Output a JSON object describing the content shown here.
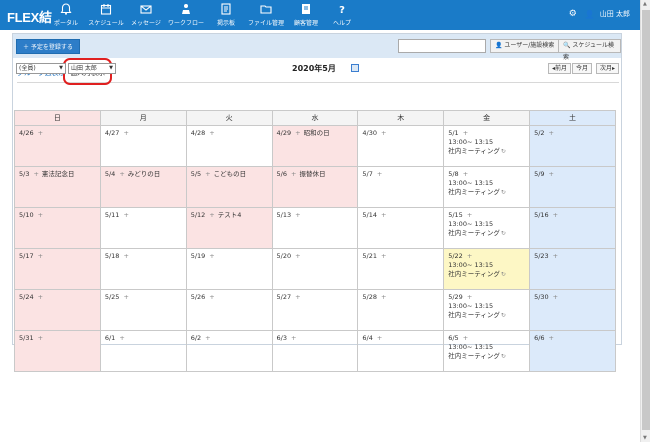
{
  "app": {
    "logo": "FLEX結"
  },
  "nav": [
    {
      "label": "ポータル",
      "icon": "bell-icon"
    },
    {
      "label": "スケジュール",
      "icon": "calendar-icon"
    },
    {
      "label": "メッセージ",
      "icon": "mail-icon"
    },
    {
      "label": "ワークフロー",
      "icon": "workflow-icon"
    },
    {
      "label": "掲示板",
      "icon": "board-icon"
    },
    {
      "label": "ファイル管理",
      "icon": "folder-icon"
    },
    {
      "label": "顧客管理",
      "icon": "customer-icon"
    },
    {
      "label": "ヘルプ",
      "icon": "help-icon"
    }
  ],
  "user": {
    "name": "山田 太郎"
  },
  "toolbar": {
    "add_label": "＋ 予定を登録する",
    "search_placeholder": "",
    "user_search_label": "ユーザー/施設検索",
    "schedule_search_label": "スケジュール検索"
  },
  "tabs": {
    "group": "グループ週表示",
    "personal": "個人月表示"
  },
  "filters": {
    "group_value": "(全員)",
    "user_value": "山田 太郎"
  },
  "calendar": {
    "title": "2020年5月",
    "prev": "前月",
    "today": "今月",
    "next": "次月",
    "weekdays": [
      "日",
      "月",
      "火",
      "水",
      "木",
      "金",
      "土"
    ],
    "weeks": [
      [
        {
          "date": "4/26",
          "type": "sun"
        },
        {
          "date": "4/27",
          "type": ""
        },
        {
          "date": "4/28",
          "type": ""
        },
        {
          "date": "4/29",
          "type": "hol",
          "holiday": "昭和の日"
        },
        {
          "date": "4/30",
          "type": ""
        },
        {
          "date": "5/1",
          "type": "",
          "event": {
            "time": "13:00~ 13:15",
            "title": "社内ミーティング"
          }
        },
        {
          "date": "5/2",
          "type": "sat"
        }
      ],
      [
        {
          "date": "5/3",
          "type": "sun",
          "holiday": "憲法記念日"
        },
        {
          "date": "5/4",
          "type": "hol",
          "holiday": "みどりの日"
        },
        {
          "date": "5/5",
          "type": "hol",
          "holiday": "こどもの日"
        },
        {
          "date": "5/6",
          "type": "hol",
          "holiday": "振替休日"
        },
        {
          "date": "5/7",
          "type": ""
        },
        {
          "date": "5/8",
          "type": "",
          "event": {
            "time": "13:00~ 13:15",
            "title": "社内ミーティング"
          }
        },
        {
          "date": "5/9",
          "type": "sat"
        }
      ],
      [
        {
          "date": "5/10",
          "type": "sun"
        },
        {
          "date": "5/11",
          "type": ""
        },
        {
          "date": "5/12",
          "type": "hol",
          "holiday": "テスト4"
        },
        {
          "date": "5/13",
          "type": ""
        },
        {
          "date": "5/14",
          "type": ""
        },
        {
          "date": "5/15",
          "type": "",
          "event": {
            "time": "13:00~ 13:15",
            "title": "社内ミーティング"
          }
        },
        {
          "date": "5/16",
          "type": "sat"
        }
      ],
      [
        {
          "date": "5/17",
          "type": "sun"
        },
        {
          "date": "5/18",
          "type": ""
        },
        {
          "date": "5/19",
          "type": ""
        },
        {
          "date": "5/20",
          "type": ""
        },
        {
          "date": "5/21",
          "type": ""
        },
        {
          "date": "5/22",
          "type": "today",
          "event": {
            "time": "13:00~ 13:15",
            "title": "社内ミーティング"
          }
        },
        {
          "date": "5/23",
          "type": "sat"
        }
      ],
      [
        {
          "date": "5/24",
          "type": "sun"
        },
        {
          "date": "5/25",
          "type": ""
        },
        {
          "date": "5/26",
          "type": ""
        },
        {
          "date": "5/27",
          "type": ""
        },
        {
          "date": "5/28",
          "type": ""
        },
        {
          "date": "5/29",
          "type": "",
          "event": {
            "time": "13:00~ 13:15",
            "title": "社内ミーティング"
          }
        },
        {
          "date": "5/30",
          "type": "sat"
        }
      ],
      [
        {
          "date": "5/31",
          "type": "sun"
        },
        {
          "date": "6/1",
          "type": ""
        },
        {
          "date": "6/2",
          "type": ""
        },
        {
          "date": "6/3",
          "type": ""
        },
        {
          "date": "6/4",
          "type": ""
        },
        {
          "date": "6/5",
          "type": "",
          "event": {
            "time": "13:00~ 13:15",
            "title": "社内ミーティング"
          }
        },
        {
          "date": "6/6",
          "type": "sat"
        }
      ]
    ]
  },
  "colors": {
    "header": "#1a7bc8",
    "sunday": "#fbe3e3",
    "saturday": "#dceafa",
    "today": "#fdf7c5",
    "highlight": "#e02020"
  }
}
